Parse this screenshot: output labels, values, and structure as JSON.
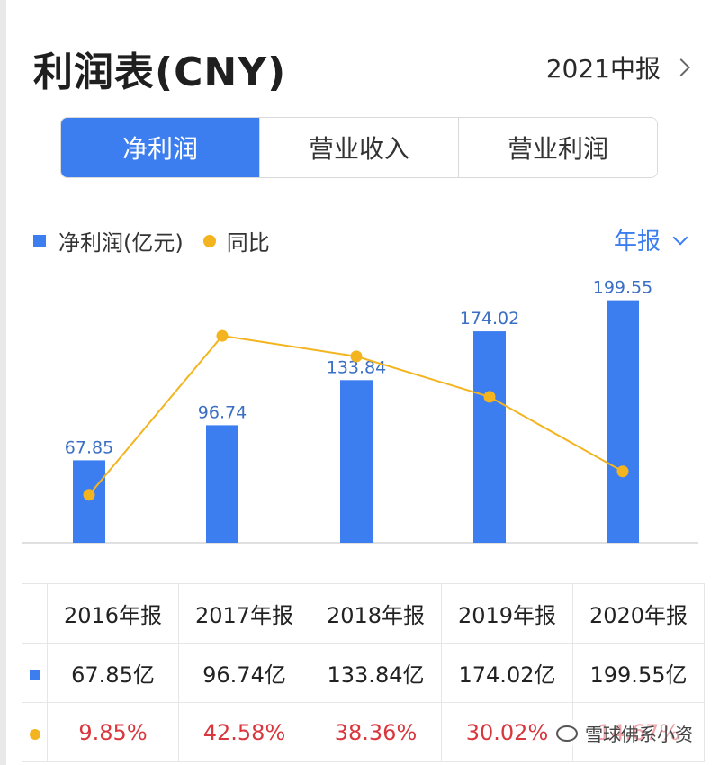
{
  "header": {
    "title": "利润表(CNY)",
    "period": "2021中报"
  },
  "tabs": [
    {
      "label": "净利润",
      "active": true
    },
    {
      "label": "营业收入",
      "active": false
    },
    {
      "label": "营业利润",
      "active": false
    }
  ],
  "legend": {
    "bar_label": "净利润(亿元)",
    "line_label": "同比"
  },
  "report_selector": "年报",
  "colors": {
    "accent": "#3c7ef0",
    "line": "#f3b41f",
    "negative_text": "#d9363e"
  },
  "chart_data": {
    "type": "bar",
    "categories": [
      "2016年报",
      "2017年报",
      "2018年报",
      "2019年报",
      "2020年报"
    ],
    "series": [
      {
        "name": "净利润(亿元)",
        "type": "bar",
        "values": [
          67.85,
          96.74,
          133.84,
          174.02,
          199.55
        ],
        "labels": [
          "67.85",
          "96.74",
          "133.84",
          "174.02",
          "199.55"
        ]
      },
      {
        "name": "同比",
        "type": "line",
        "values": [
          9.85,
          42.58,
          38.36,
          30.02,
          14.67
        ]
      }
    ],
    "y_bar_range": [
      0,
      200
    ],
    "y_line_range": [
      0,
      50
    ]
  },
  "table": {
    "headers": [
      "2016年报",
      "2017年报",
      "2018年报",
      "2019年报",
      "2020年报"
    ],
    "profit_row": [
      "67.85亿",
      "96.74亿",
      "133.84亿",
      "174.02亿",
      "199.55亿"
    ],
    "yoy_row": [
      "9.85%",
      "42.58%",
      "38.36%",
      "30.02%",
      "14.67%"
    ]
  },
  "watermark": "雪球佛系小资"
}
